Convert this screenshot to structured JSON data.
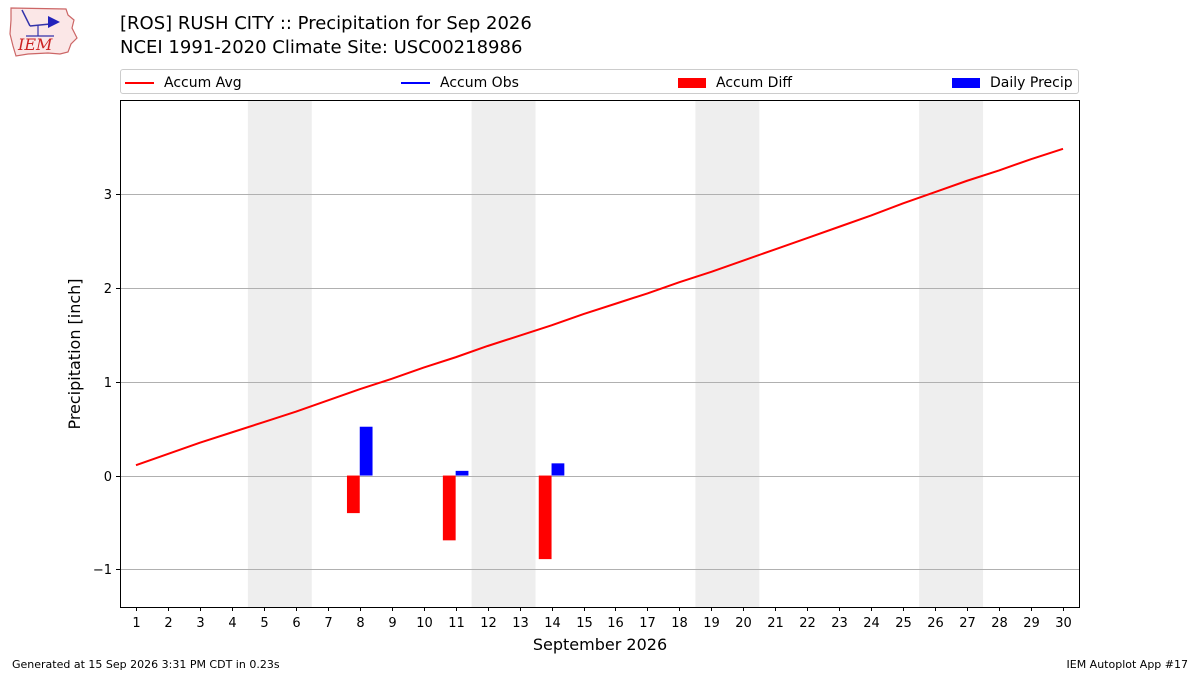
{
  "header": {
    "title_line1": "[ROS] RUSH CITY :: Precipitation for Sep 2026",
    "title_line2": "NCEI 1991-2020 Climate Site: USC00218986",
    "logo_text": "IEM"
  },
  "footer": {
    "left": "Generated at 15 Sep 2026 3:31 PM CDT in 0.23s",
    "right": "IEM Autoplot App #17"
  },
  "colors": {
    "avg": "#ff0000",
    "obs": "#0000ff",
    "diff": "#ff0000",
    "daily": "#0000ff",
    "weekend": "#eeeeee",
    "grid": "#b0b0b0"
  },
  "chart_data": {
    "type": "bar",
    "xlabel": "September 2026",
    "ylabel": "Precipitation [inch]",
    "xlim": [
      0.5,
      30.5
    ],
    "ylim": [
      -1.4,
      4.0
    ],
    "x_ticks": [
      1,
      2,
      3,
      4,
      5,
      6,
      7,
      8,
      9,
      10,
      11,
      12,
      13,
      14,
      15,
      16,
      17,
      18,
      19,
      20,
      21,
      22,
      23,
      24,
      25,
      26,
      27,
      28,
      29,
      30
    ],
    "y_ticks": [
      -1,
      0,
      1,
      2,
      3
    ],
    "y_tick_labels": [
      "−1",
      "0",
      "1",
      "2",
      "3"
    ],
    "grid": "horizontal",
    "legend_position": "top",
    "weekend_shading": [
      [
        4.5,
        6.5
      ],
      [
        11.5,
        13.5
      ],
      [
        18.5,
        20.5
      ],
      [
        25.5,
        27.5
      ]
    ],
    "legend": [
      "Accum Avg",
      "Accum Obs",
      "Accum Diff",
      "Daily Precip"
    ],
    "accum_avg": {
      "name": "Accum Avg",
      "x": [
        1,
        2,
        3,
        4,
        5,
        6,
        7,
        8,
        9,
        10,
        11,
        12,
        13,
        14,
        15,
        16,
        17,
        18,
        19,
        20,
        21,
        22,
        23,
        24,
        25,
        26,
        27,
        28,
        29,
        30
      ],
      "values": [
        0.11,
        0.23,
        0.35,
        0.46,
        0.57,
        0.68,
        0.8,
        0.92,
        1.03,
        1.15,
        1.26,
        1.38,
        1.49,
        1.6,
        1.72,
        1.83,
        1.94,
        2.06,
        2.17,
        2.29,
        2.41,
        2.53,
        2.65,
        2.77,
        2.9,
        3.02,
        3.14,
        3.25,
        3.37,
        3.48
      ]
    },
    "accum_diff": {
      "name": "Accum Diff",
      "x": [
        8,
        11,
        14
      ],
      "values": [
        -0.4,
        -0.69,
        -0.89
      ]
    },
    "daily_precip": {
      "name": "Daily Precip",
      "x": [
        8,
        11,
        14
      ],
      "values": [
        0.52,
        0.05,
        0.13
      ]
    }
  }
}
